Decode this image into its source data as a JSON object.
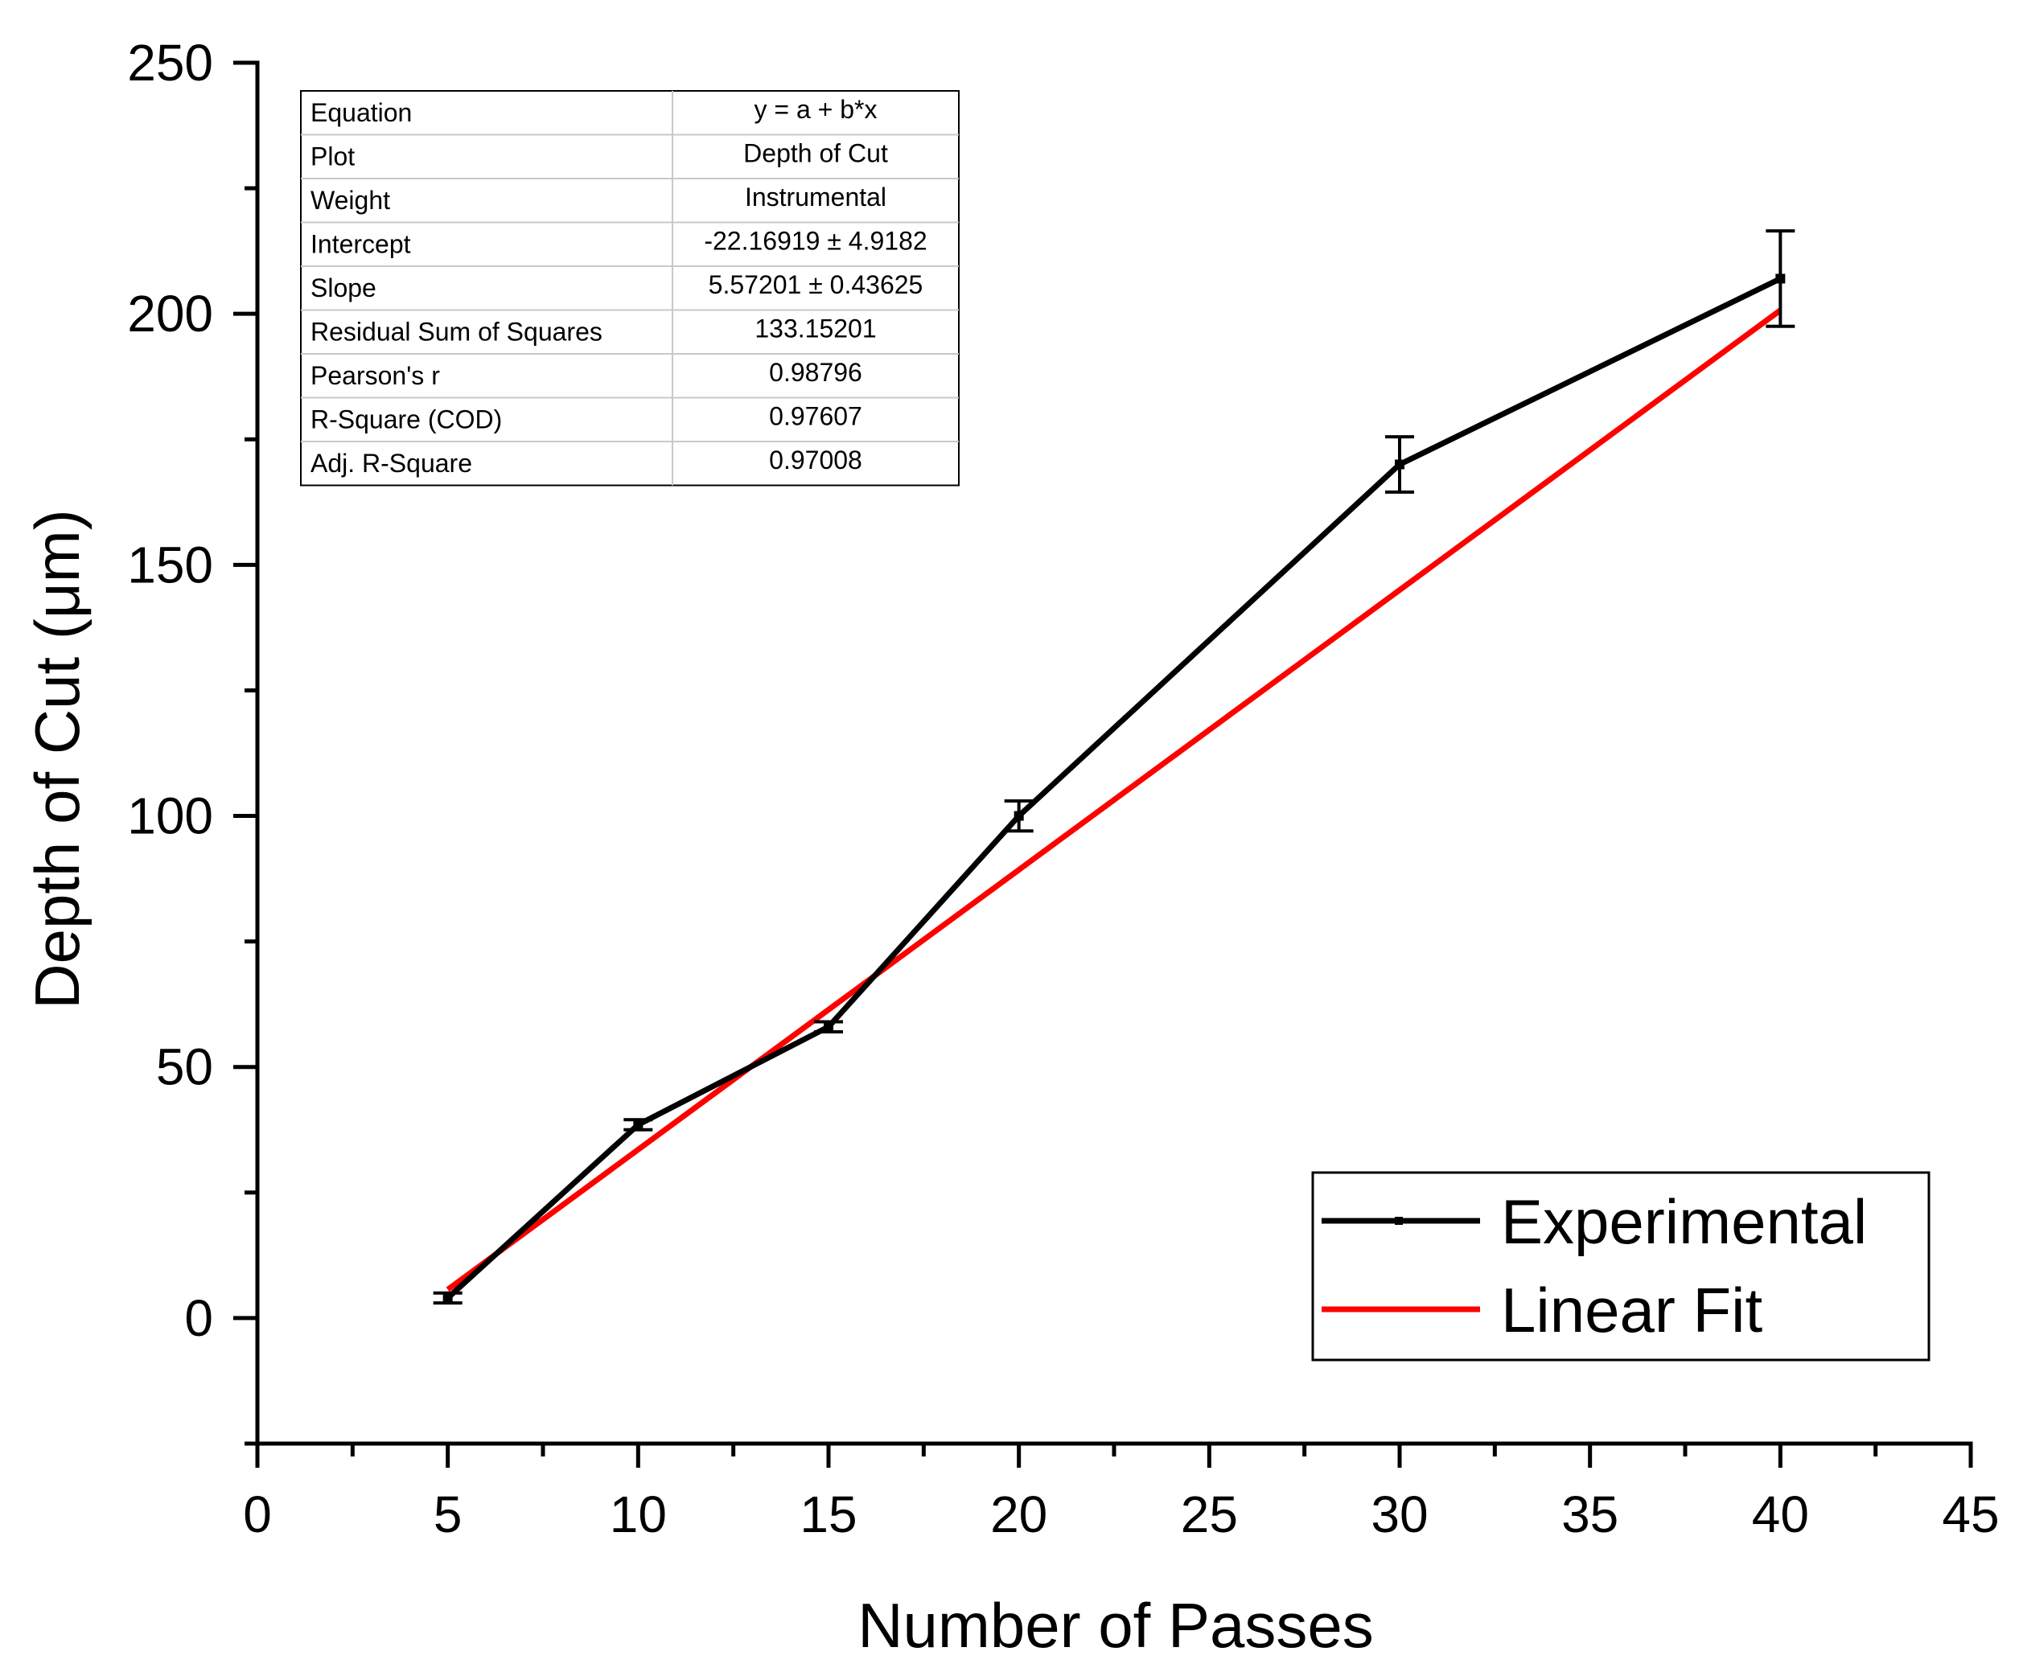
{
  "chart_data": {
    "type": "line",
    "title": "",
    "xlabel": "Number of Passes",
    "ylabel": "Depth of Cut (μm)",
    "xlim": [
      0,
      45
    ],
    "ylim": [
      -25,
      250
    ],
    "x_ticks": [
      0,
      5,
      10,
      15,
      20,
      25,
      30,
      35,
      40,
      45
    ],
    "y_ticks": [
      0,
      50,
      100,
      150,
      200,
      250
    ],
    "x_tick_labels": [
      "0",
      "5",
      "10",
      "15",
      "20",
      "25",
      "30",
      "35",
      "40",
      "45"
    ],
    "y_tick_labels": [
      "0",
      "50",
      "100",
      "150",
      "200",
      "250"
    ],
    "grid": false,
    "series": [
      {
        "name": "Experimental",
        "color": "#000000",
        "x": [
          5,
          10,
          15,
          20,
          30,
          40
        ],
        "y": [
          4,
          38.5,
          58,
          100,
          170,
          207
        ],
        "error": [
          1,
          1,
          1,
          3,
          5.5,
          9.5
        ]
      },
      {
        "name": "Linear Fit",
        "color": "#ff0000",
        "x": [
          5,
          40
        ],
        "y": [
          5.69,
          200.71
        ]
      }
    ],
    "legend": {
      "position": "bottom-right",
      "entries": [
        "Experimental",
        "Linear Fit"
      ]
    },
    "fit_table": {
      "rows": [
        {
          "label": "Equation",
          "value": "y = a + b*x"
        },
        {
          "label": "Plot",
          "value": "Depth of Cut"
        },
        {
          "label": "Weight",
          "value": "Instrumental"
        },
        {
          "label": "Intercept",
          "value": "-22.16919 ± 4.9182"
        },
        {
          "label": "Slope",
          "value": "5.57201 ± 0.43625"
        },
        {
          "label": "Residual Sum of Squares",
          "value": "133.15201"
        },
        {
          "label": "Pearson's r",
          "value": "0.98796"
        },
        {
          "label": "R-Square (COD)",
          "value": "0.97607"
        },
        {
          "label": "Adj. R-Square",
          "value": "0.97008"
        }
      ]
    }
  }
}
